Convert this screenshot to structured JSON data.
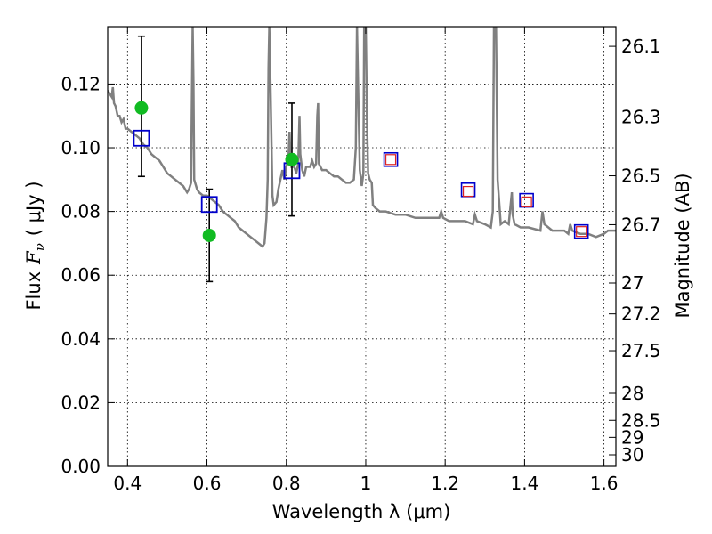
{
  "chart_data": {
    "type": "scatter",
    "title": "",
    "xlabel": "Wavelength  λ (μm)",
    "ylabel_parts": {
      "prefix": "Flux",
      "symbol": "F",
      "subscript": "ν",
      "unit": "( μJy )"
    },
    "y2label": "Magnitude (AB)",
    "xlim": [
      0.35,
      1.63
    ],
    "ylim": [
      0.0,
      0.138
    ],
    "grid": true,
    "legend": "none",
    "x_ticks": [
      {
        "value": 0.4,
        "label": "0.4"
      },
      {
        "value": 0.6,
        "label": "0.6"
      },
      {
        "value": 0.8,
        "label": "0.8"
      },
      {
        "value": 1.0,
        "label": "1"
      },
      {
        "value": 1.2,
        "label": "1.2"
      },
      {
        "value": 1.4,
        "label": "1.4"
      },
      {
        "value": 1.6,
        "label": "1.6"
      }
    ],
    "y_ticks": [
      {
        "value": 0.0,
        "label": "0.00"
      },
      {
        "value": 0.02,
        "label": "0.02"
      },
      {
        "value": 0.04,
        "label": "0.04"
      },
      {
        "value": 0.06,
        "label": "0.06"
      },
      {
        "value": 0.08,
        "label": "0.08"
      },
      {
        "value": 0.1,
        "label": "0.10"
      },
      {
        "value": 0.12,
        "label": "0.12"
      }
    ],
    "y2_ticks": [
      {
        "value": 26.1,
        "label": "26.1"
      },
      {
        "value": 26.3,
        "label": "26.3"
      },
      {
        "value": 26.5,
        "label": "26.5"
      },
      {
        "value": 26.7,
        "label": "26.7"
      },
      {
        "value": 27.0,
        "label": "27"
      },
      {
        "value": 27.2,
        "label": "27.2"
      },
      {
        "value": 27.5,
        "label": "27.5"
      },
      {
        "value": 28.0,
        "label": "28"
      },
      {
        "value": 28.5,
        "label": "28.5"
      },
      {
        "value": 29.0,
        "label": "29"
      },
      {
        "value": 30.0,
        "label": "30"
      }
    ],
    "spectrum": {
      "color": "#808080",
      "points": [
        [
          0.35,
          0.118
        ],
        [
          0.36,
          0.116
        ],
        [
          0.363,
          0.119
        ],
        [
          0.366,
          0.114
        ],
        [
          0.37,
          0.113
        ],
        [
          0.375,
          0.11
        ],
        [
          0.38,
          0.11
        ],
        [
          0.385,
          0.108
        ],
        [
          0.39,
          0.109
        ],
        [
          0.395,
          0.106
        ],
        [
          0.4,
          0.106
        ],
        [
          0.41,
          0.105
        ],
        [
          0.42,
          0.104
        ],
        [
          0.43,
          0.103
        ],
        [
          0.44,
          0.101
        ],
        [
          0.45,
          0.1
        ],
        [
          0.46,
          0.098
        ],
        [
          0.47,
          0.097
        ],
        [
          0.48,
          0.096
        ],
        [
          0.49,
          0.094
        ],
        [
          0.5,
          0.092
        ],
        [
          0.51,
          0.091
        ],
        [
          0.52,
          0.09
        ],
        [
          0.53,
          0.089
        ],
        [
          0.54,
          0.088
        ],
        [
          0.55,
          0.086
        ],
        [
          0.555,
          0.087
        ],
        [
          0.56,
          0.089
        ],
        [
          0.562,
          0.114
        ],
        [
          0.564,
          0.138
        ],
        [
          0.566,
          0.12
        ],
        [
          0.568,
          0.09
        ],
        [
          0.575,
          0.087
        ],
        [
          0.58,
          0.086
        ],
        [
          0.59,
          0.085
        ],
        [
          0.6,
          0.085
        ],
        [
          0.61,
          0.084
        ],
        [
          0.62,
          0.083
        ],
        [
          0.63,
          0.082
        ],
        [
          0.64,
          0.08
        ],
        [
          0.65,
          0.079
        ],
        [
          0.66,
          0.078
        ],
        [
          0.67,
          0.077
        ],
        [
          0.68,
          0.075
        ],
        [
          0.69,
          0.074
        ],
        [
          0.7,
          0.073
        ],
        [
          0.71,
          0.072
        ],
        [
          0.72,
          0.071
        ],
        [
          0.73,
          0.07
        ],
        [
          0.74,
          0.069
        ],
        [
          0.745,
          0.07
        ],
        [
          0.75,
          0.078
        ],
        [
          0.753,
          0.09
        ],
        [
          0.755,
          0.125
        ],
        [
          0.757,
          0.138
        ],
        [
          0.76,
          0.12
        ],
        [
          0.765,
          0.085
        ],
        [
          0.768,
          0.082
        ],
        [
          0.775,
          0.083
        ],
        [
          0.78,
          0.087
        ],
        [
          0.785,
          0.09
        ],
        [
          0.79,
          0.093
        ],
        [
          0.795,
          0.09
        ],
        [
          0.8,
          0.094
        ],
        [
          0.805,
          0.096
        ],
        [
          0.808,
          0.105
        ],
        [
          0.81,
          0.098
        ],
        [
          0.813,
          0.094
        ],
        [
          0.82,
          0.094
        ],
        [
          0.825,
          0.092
        ],
        [
          0.83,
          0.095
        ],
        [
          0.833,
          0.11
        ],
        [
          0.835,
          0.098
        ],
        [
          0.84,
          0.093
        ],
        [
          0.845,
          0.091
        ],
        [
          0.85,
          0.094
        ],
        [
          0.86,
          0.094
        ],
        [
          0.865,
          0.096
        ],
        [
          0.87,
          0.094
        ],
        [
          0.875,
          0.095
        ],
        [
          0.878,
          0.11
        ],
        [
          0.88,
          0.114
        ],
        [
          0.882,
          0.095
        ],
        [
          0.89,
          0.093
        ],
        [
          0.9,
          0.093
        ],
        [
          0.91,
          0.092
        ],
        [
          0.92,
          0.091
        ],
        [
          0.93,
          0.091
        ],
        [
          0.94,
          0.09
        ],
        [
          0.95,
          0.089
        ],
        [
          0.96,
          0.089
        ],
        [
          0.97,
          0.09
        ],
        [
          0.975,
          0.1
        ],
        [
          0.978,
          0.138
        ],
        [
          0.982,
          0.112
        ],
        [
          0.985,
          0.093
        ],
        [
          0.99,
          0.088
        ],
        [
          0.994,
          0.092
        ],
        [
          0.996,
          0.138
        ],
        [
          1.0,
          0.138
        ],
        [
          1.003,
          0.11
        ],
        [
          1.006,
          0.092
        ],
        [
          1.01,
          0.09
        ],
        [
          1.015,
          0.089
        ],
        [
          1.018,
          0.082
        ],
        [
          1.025,
          0.081
        ],
        [
          1.035,
          0.08
        ],
        [
          1.05,
          0.08
        ],
        [
          1.075,
          0.079
        ],
        [
          1.1,
          0.079
        ],
        [
          1.125,
          0.078
        ],
        [
          1.15,
          0.078
        ],
        [
          1.175,
          0.078
        ],
        [
          1.185,
          0.078
        ],
        [
          1.19,
          0.08
        ],
        [
          1.195,
          0.078
        ],
        [
          1.21,
          0.077
        ],
        [
          1.23,
          0.077
        ],
        [
          1.25,
          0.077
        ],
        [
          1.27,
          0.076
        ],
        [
          1.275,
          0.079
        ],
        [
          1.28,
          0.077
        ],
        [
          1.3,
          0.076
        ],
        [
          1.315,
          0.075
        ],
        [
          1.32,
          0.08
        ],
        [
          1.323,
          0.138
        ],
        [
          1.328,
          0.138
        ],
        [
          1.332,
          0.09
        ],
        [
          1.34,
          0.076
        ],
        [
          1.35,
          0.077
        ],
        [
          1.36,
          0.076
        ],
        [
          1.368,
          0.086
        ],
        [
          1.37,
          0.079
        ],
        [
          1.375,
          0.076
        ],
        [
          1.39,
          0.075
        ],
        [
          1.41,
          0.075
        ],
        [
          1.44,
          0.074
        ],
        [
          1.445,
          0.08
        ],
        [
          1.45,
          0.076
        ],
        [
          1.47,
          0.074
        ],
        [
          1.49,
          0.074
        ],
        [
          1.5,
          0.074
        ],
        [
          1.51,
          0.073
        ],
        [
          1.515,
          0.076
        ],
        [
          1.52,
          0.074
        ],
        [
          1.54,
          0.073
        ],
        [
          1.56,
          0.073
        ],
        [
          1.58,
          0.072
        ],
        [
          1.6,
          0.073
        ],
        [
          1.61,
          0.074
        ],
        [
          1.63,
          0.074
        ]
      ]
    },
    "observed": {
      "color": "#11bb22",
      "points": [
        {
          "x": 0.435,
          "y": 0.1125,
          "yerr_low": 0.0215,
          "yerr_high": 0.0225
        },
        {
          "x": 0.606,
          "y": 0.0725,
          "yerr_low": 0.0145,
          "yerr_high": 0.0145
        },
        {
          "x": 0.814,
          "y": 0.0963,
          "yerr_low": 0.0177,
          "yerr_high": 0.0177
        }
      ]
    },
    "model_blue": {
      "color": "#0000cc",
      "points": [
        {
          "x": 0.435,
          "y": 0.103
        },
        {
          "x": 0.606,
          "y": 0.0822
        },
        {
          "x": 0.814,
          "y": 0.0928
        },
        {
          "x": 1.063,
          "y": 0.0963
        },
        {
          "x": 1.258,
          "y": 0.0868
        },
        {
          "x": 1.405,
          "y": 0.0835
        },
        {
          "x": 1.543,
          "y": 0.0737
        }
      ]
    },
    "model_red": {
      "color": "#dd2222",
      "points": [
        {
          "x": 1.063,
          "y": 0.0963
        },
        {
          "x": 1.258,
          "y": 0.0863
        },
        {
          "x": 1.405,
          "y": 0.083
        },
        {
          "x": 1.543,
          "y": 0.0737
        }
      ]
    }
  }
}
